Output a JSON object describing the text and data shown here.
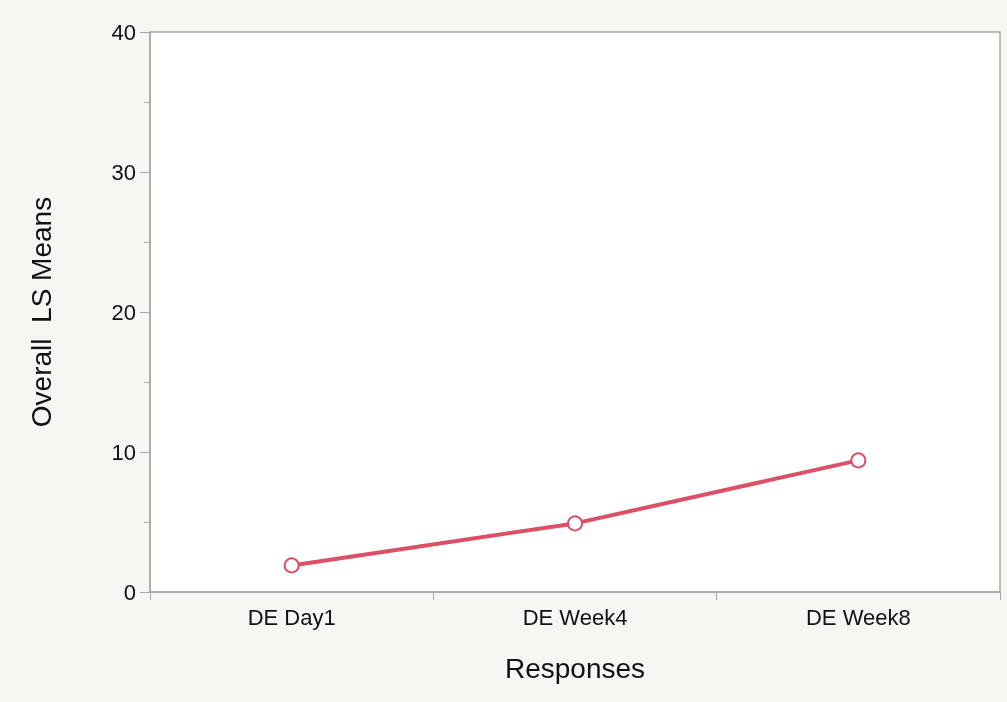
{
  "chart_data": {
    "type": "line",
    "xlabel": "Responses",
    "ylabel": "Overall  LS Means",
    "categories": [
      "DE Day1",
      "DE Week4",
      "DE Week8"
    ],
    "series": [
      {
        "color": "#dc4f66",
        "values": [
          1.9,
          4.9,
          9.4
        ]
      }
    ],
    "ylim": [
      0,
      40
    ],
    "yticks": [
      0,
      10,
      20,
      30,
      40
    ],
    "grid": false,
    "marker": "circle",
    "line_style": "solid"
  }
}
